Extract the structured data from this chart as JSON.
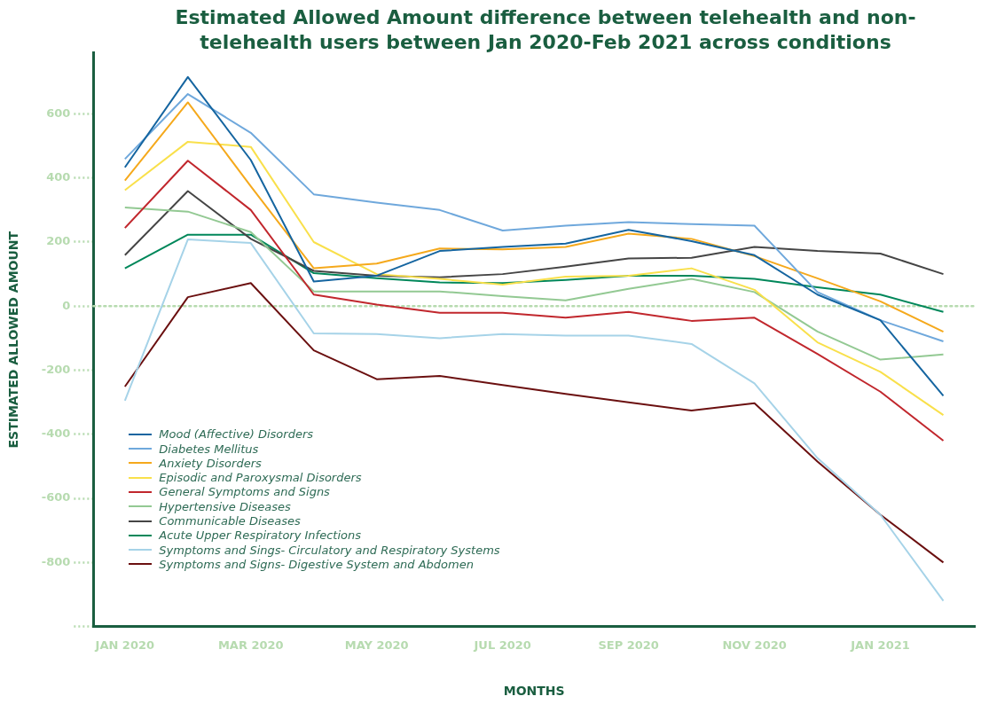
{
  "chart_data": {
    "type": "line",
    "title": "Estimated Allowed Amount difference between telehealth and non-telehealth users between Jan 2020-Feb 2021 across conditions",
    "xlabel": "MONTHS",
    "ylabel": "ESTIMATED ALLOWED AMOUNT",
    "categories": [
      "JAN 2020",
      null,
      "MAR 2020",
      null,
      "MAY 2020",
      null,
      "JUL 2020",
      null,
      "SEP 2020",
      null,
      "NOV 2020",
      null,
      "JAN 2021",
      null
    ],
    "series": [
      {
        "name": "Mood (Affective) Disorders",
        "color": "#1565a0",
        "values": [
          433,
          715,
          456,
          77,
          95,
          172,
          185,
          195,
          238,
          203,
          159,
          36,
          -44,
          -280
        ]
      },
      {
        "name": "Diabetes Mellitus",
        "color": "#6fa8dc",
        "values": [
          459,
          662,
          541,
          349,
          323,
          300,
          236,
          251,
          262,
          256,
          251,
          44,
          -44,
          -110
        ]
      },
      {
        "name": "Anxiety Disorders",
        "color": "#f5a91c",
        "values": [
          392,
          636,
          374,
          118,
          133,
          180,
          177,
          185,
          226,
          210,
          156,
          87,
          15,
          -80
        ]
      },
      {
        "name": "Episodic and Paroxysmal Disorders",
        "color": "#f9e04b",
        "values": [
          362,
          513,
          497,
          200,
          100,
          85,
          67,
          92,
          95,
          118,
          51,
          -113,
          -205,
          -340
        ]
      },
      {
        "name": "General Symptoms and Signs",
        "color": "#c1272d",
        "values": [
          244,
          454,
          300,
          36,
          5,
          -21,
          -21,
          -36,
          -18,
          -46,
          -36,
          -149,
          -267,
          -420
        ]
      },
      {
        "name": "Hypertensive Diseases",
        "color": "#93c993",
        "values": [
          308,
          295,
          231,
          46,
          46,
          46,
          31,
          18,
          54,
          85,
          44,
          -79,
          -167,
          -151
        ]
      },
      {
        "name": "Communicable Diseases",
        "color": "#454545",
        "values": [
          159,
          359,
          210,
          110,
          95,
          90,
          100,
          123,
          149,
          151,
          185,
          172,
          164,
          100
        ]
      },
      {
        "name": "Acute Upper Respiratory Infections",
        "color": "#00875a",
        "values": [
          118,
          223,
          223,
          103,
          87,
          74,
          72,
          82,
          95,
          95,
          85,
          59,
          36,
          -18
        ]
      },
      {
        "name": "Symptoms and Sings- Circulatory and Respiratory Systems",
        "color": "#a6d3e8",
        "values": [
          -295,
          208,
          197,
          -85,
          -87,
          -100,
          -87,
          -92,
          -92,
          -118,
          -241,
          -474,
          -651,
          -920
        ]
      },
      {
        "name": "Symptoms and Signs- Digestive System and Abdomen",
        "color": "#6b1010",
        "values": [
          -251,
          28,
          72,
          -138,
          -228,
          -218,
          -246,
          -274,
          -300,
          -326,
          -303,
          -485,
          -651,
          -800
        ]
      }
    ],
    "ylim": [
      -1000,
      790
    ],
    "yticks": [
      {
        "value": -1000,
        "label": null
      },
      -800,
      -600,
      -400,
      -200,
      0,
      200,
      400,
      600
    ],
    "ref_lines": [
      {
        "axis": "y",
        "value": 0,
        "label": null,
        "color": "#b7dbb0",
        "line_style": "dotted"
      }
    ],
    "grid": false,
    "legend": "bottom left",
    "line_style": "solid"
  }
}
